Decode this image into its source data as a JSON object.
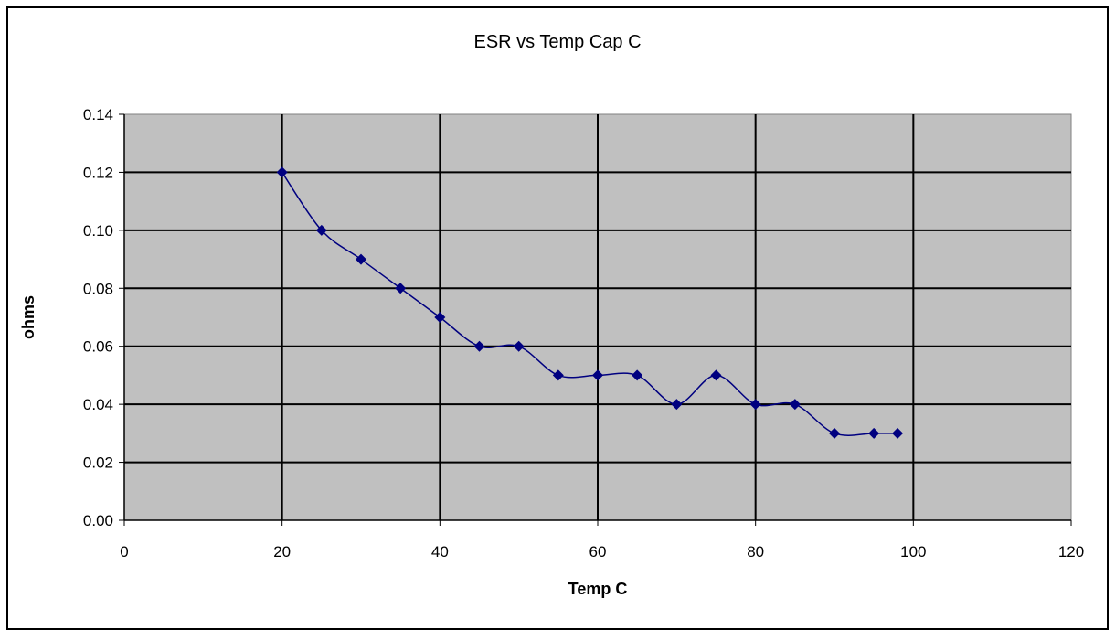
{
  "chart_data": {
    "type": "line",
    "title": "ESR vs Temp Cap C",
    "xlabel": "Temp C",
    "ylabel": "ohms",
    "xlim": [
      0,
      120
    ],
    "ylim": [
      0,
      0.14
    ],
    "xticks": [
      "0",
      "20",
      "40",
      "60",
      "80",
      "100",
      "120"
    ],
    "yticks": [
      "0.00",
      "0.02",
      "0.04",
      "0.06",
      "0.08",
      "0.10",
      "0.12",
      "0.14"
    ],
    "grid": true,
    "smoothed": true,
    "series": [
      {
        "name": "ESR",
        "color": "#000080",
        "x": [
          20,
          25,
          30,
          35,
          40,
          45,
          50,
          55,
          60,
          65,
          70,
          75,
          80,
          85,
          90,
          95,
          98
        ],
        "y": [
          0.12,
          0.1,
          0.09,
          0.08,
          0.07,
          0.06,
          0.06,
          0.05,
          0.05,
          0.05,
          0.04,
          0.05,
          0.04,
          0.04,
          0.03,
          0.03,
          0.03
        ]
      }
    ],
    "plot_background": "#c0c0c0"
  }
}
